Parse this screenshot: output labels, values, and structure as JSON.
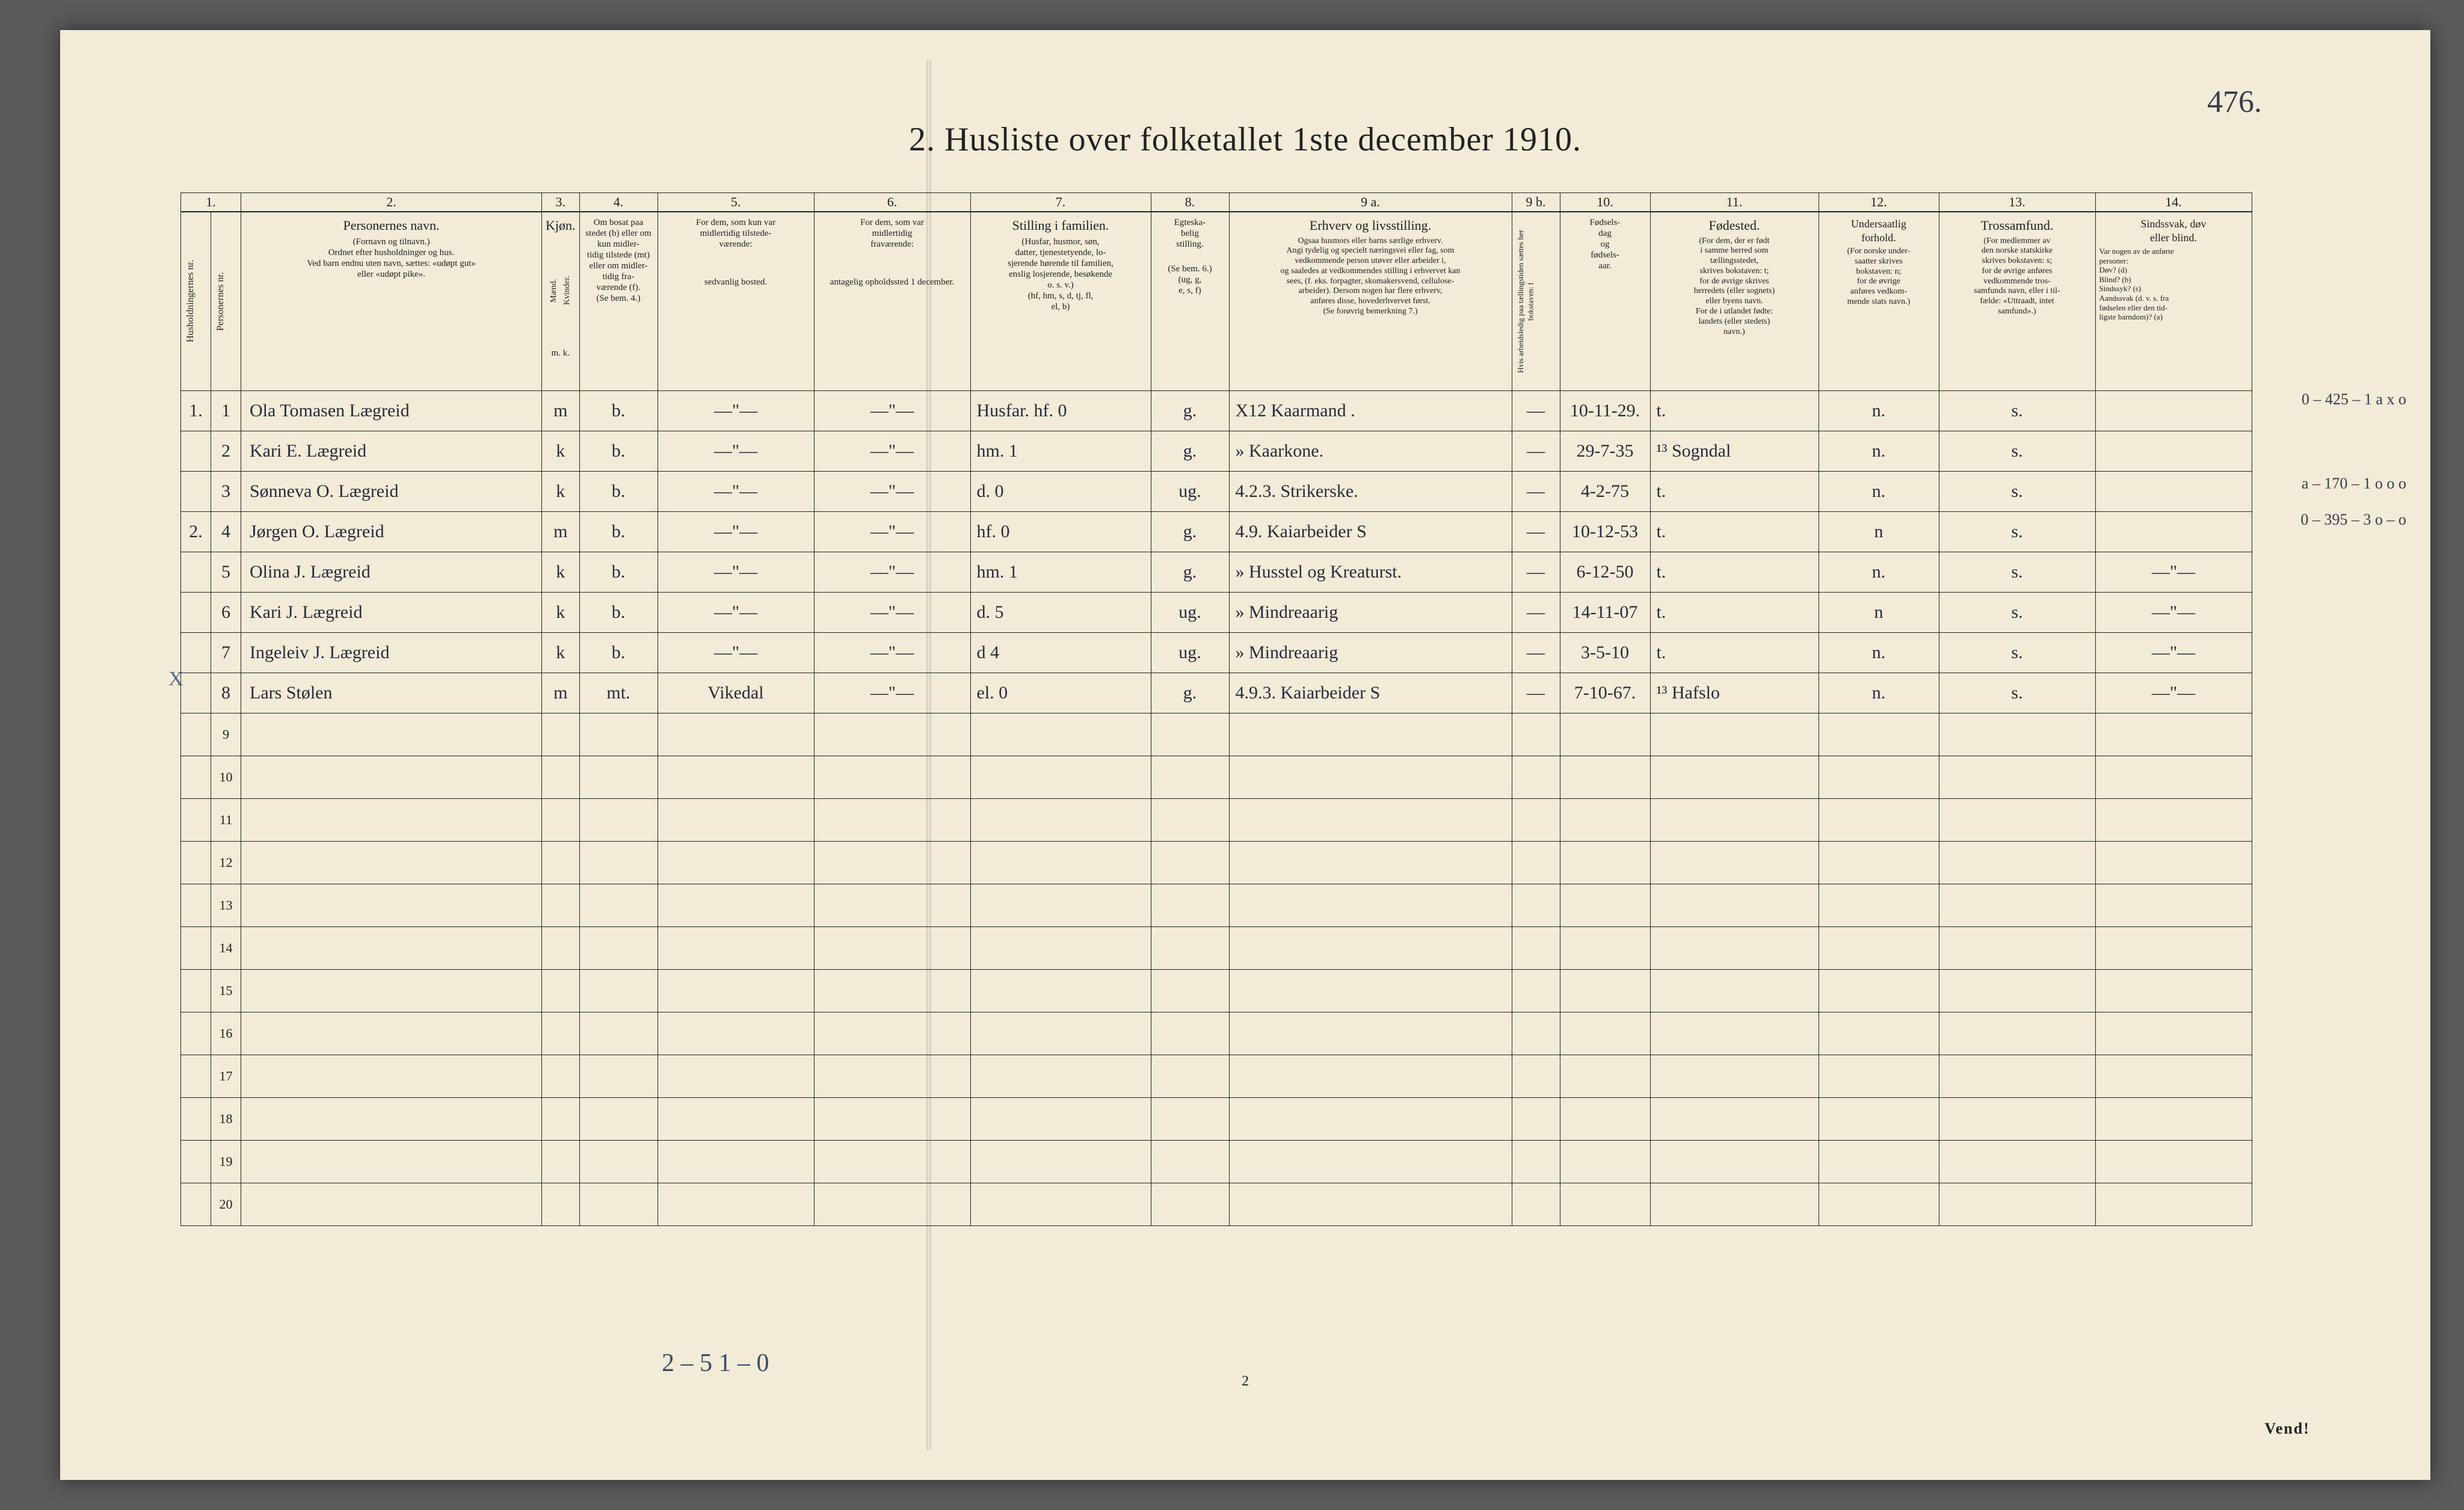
{
  "page_number_hand": "476.",
  "title": "2.  Husliste over folketallet 1ste december 1910.",
  "colnums": [
    "1.",
    "",
    "2.",
    "3.",
    "4.",
    "5.",
    "6.",
    "7.",
    "8.",
    "9 a.",
    "9 b.",
    "10.",
    "11.",
    "12.",
    "13.",
    "14."
  ],
  "headers": {
    "hush_nr": "Husholdningernes nr.",
    "pers_nr": "Personernes nr.",
    "navn_big": "Personernes navn.",
    "navn_small": "(Fornavn og tilnavn.)\nOrdnet efter husholdninger og hus.\nVed barn endnu uten navn, sættes: «udøpt gut»\neller «udøpt pike».",
    "kjon_big": "Kjøn.",
    "kjon_sub1": "Mænd.",
    "kjon_sub2": "Kvinder.",
    "kjon_mk": "m.  k.",
    "bosat_big": "Om bosat paa stedet (b) eller om\nkun midler-\ntidig tilstede (mt) eller om midler-\ntidig fra-\nværende (f).\n(Se bem. 4.)",
    "tilstede_big": "For dem, som kun var\nmidlertidig tilstede-\nværende:",
    "tilstede_small": "sedvanlig bosted.",
    "frav_big": "For dem, som var\nmidlertidig\nfraværende:",
    "frav_small": "antagelig opholdssted 1 december.",
    "stilling_big": "Stilling i familien.",
    "stilling_small": "(Husfar, husmor, søn,\ndatter, tjenestetyende, lo-\nsjerende hørende til familien,\nenslig losjerende, besøkende\no. s. v.)\n(hf, hm, s, d, tj, fl,\nel, b)",
    "egte_big": "Egteska-\nbelig\nstilling.",
    "egte_small": "(Se bem. 6.)\n(ug, g,\ne, s, f)",
    "erhverv_big": "Erhverv og livsstilling.",
    "erhverv_small": "Ogsaa husmors eller barns særlige erhverv.\nAngi tydelig og specielt næringsvei eller fag, som\nvedkommende person utøver eller arbeider i,\nog saaledes at vedkommendes stilling i erhvervet kan\nsees, (f. eks. forpagter, skomakersvend, cellulose-\narbeider). Dersom nogen har flere erhverv,\nanføres disse, hovederhvervet først.\n(Se forøvrig bemerkning 7.)",
    "arb_vert": "Hvis arbeidsledig\npaa tællingstiden sættes\nher bokstaven: l",
    "fodsels_big": "Fødsels-\ndag\nog\nfødsels-\naar.",
    "fodested_big": "Fødested.",
    "fodested_small": "(For dem, der er født\ni samme herred som\ntællingsstedet,\nskrives bokstaven: t;\nfor de øvrige skrives\nherredets (eller sognets)\neller byens navn.\nFor de i utlandet fødte:\nlandets (eller stedets)\nnavn.)",
    "undersaat_big": "Undersaatlig\nforhold.",
    "undersaat_small": "(For norske under-\nsaatter skrives\nbokstaven: n;\nfor de øvrige\nanføres vedkom-\nmende stats navn.)",
    "tros_big": "Trossamfund.",
    "tros_small": "(For medlemmer av\nden norske statskirke\nskrives bokstaven: s;\nfor de øvrige anføres\nvedkommende tros-\nsamfunds navn, eller i til-\nfælde: «Uttraadt, intet\nsamfund».)",
    "sinds_big": "Sindssvak, døv\neller blind.",
    "sinds_small": "Var nogen av de anførte\npersoner:\nDøv?       (d)\nBlind?     (b)\nSindssyk? (s)\nAandssvak (d. v. s. fra\nfødselen eller den tid-\nligste barndom)? (a)"
  },
  "rows": [
    {
      "hh": "1.",
      "nr": "1",
      "name": "Ola Tomasen Lægreid",
      "kjon": "m",
      "b": "b.",
      "c5": "—\"—",
      "c6": "—\"—",
      "fam": "Husfar. hf. 0",
      "egte": "g.",
      "erhv": "X12 Kaarmand .",
      "l": "—",
      "fod": "10-11-29.",
      "sted": "t.",
      "und": "n.",
      "tros": "s.",
      "sind": ""
    },
    {
      "hh": "",
      "nr": "2",
      "name": "Kari E. Lægreid",
      "kjon": "k",
      "b": "b.",
      "c5": "—\"—",
      "c6": "—\"—",
      "fam": "hm.     1",
      "egte": "g.",
      "erhv": "» Kaarkone.",
      "l": "—",
      "fod": "29-7-35",
      "sted": "¹³ Sogndal",
      "und": "n.",
      "tros": "s.",
      "sind": ""
    },
    {
      "hh": "",
      "nr": "3",
      "name": "Sønneva O. Lægreid",
      "kjon": "k",
      "b": "b.",
      "c5": "—\"—",
      "c6": "—\"—",
      "fam": "d.      0",
      "egte": "ug.",
      "erhv": "4.2.3. Strikerske.",
      "l": "—",
      "fod": "4-2-75",
      "sted": "t.",
      "und": "n.",
      "tros": "s.",
      "sind": ""
    },
    {
      "hh": "2.",
      "nr": "4",
      "name": "Jørgen O. Lægreid",
      "kjon": "m",
      "b": "b.",
      "c5": "—\"—",
      "c6": "—\"—",
      "fam": "hf.     0",
      "egte": "g.",
      "erhv": "4.9. Kaiarbeider S",
      "l": "—",
      "fod": "10-12-53",
      "sted": "t.",
      "und": "n",
      "tros": "s.",
      "sind": ""
    },
    {
      "hh": "",
      "nr": "5",
      "name": "Olina J. Lægreid",
      "kjon": "k",
      "b": "b.",
      "c5": "—\"—",
      "c6": "—\"—",
      "fam": "hm.     1",
      "egte": "g.",
      "erhv": "» Husstel og Kreaturst.",
      "l": "—",
      "fod": "6-12-50",
      "sted": "t.",
      "und": "n.",
      "tros": "s.",
      "sind": "—\"—"
    },
    {
      "hh": "",
      "nr": "6",
      "name": "Kari J. Lægreid",
      "kjon": "k",
      "b": "b.",
      "c5": "—\"—",
      "c6": "—\"—",
      "fam": "d.      5",
      "egte": "ug.",
      "erhv": "» Mindreaarig",
      "l": "—",
      "fod": "14-11-07",
      "sted": "t.",
      "und": "n",
      "tros": "s.",
      "sind": "—\"—"
    },
    {
      "hh": "",
      "nr": "7",
      "name": "Ingeleiv J. Lægreid",
      "kjon": "k",
      "b": "b.",
      "c5": "—\"—",
      "c6": "—\"—",
      "fam": "d       4",
      "egte": "ug.",
      "erhv": "» Mindreaarig",
      "l": "—",
      "fod": "3-5-10",
      "sted": "t.",
      "und": "n.",
      "tros": "s.",
      "sind": "—\"—"
    },
    {
      "hh": "",
      "nr": "8",
      "name": "Lars Stølen",
      "kjon": "m",
      "b": "mt.",
      "c5": "Vikedal",
      "c6": "—\"—",
      "fam": "el.     0",
      "egte": "g.",
      "erhv": "4.9.3. Kaiarbeider S",
      "l": "—",
      "fod": "7-10-67.",
      "sted": "¹³ Hafslo",
      "und": "n.",
      "tros": "s.",
      "sind": "—\"—"
    }
  ],
  "margin_notes": [
    {
      "row": 1,
      "text": "0 – 425 – 1\na x o"
    },
    {
      "row": 3,
      "text": "a – 170 – 1\no o o"
    },
    {
      "row": 4,
      "text": "0 – 395 – 3\no – o"
    }
  ],
  "empty_row_numbers": [
    "9",
    "10",
    "11",
    "12",
    "13",
    "14",
    "15",
    "16",
    "17",
    "18",
    "19",
    "20"
  ],
  "bottom_note": "2 – 5    1 – 0",
  "page2": "2",
  "vend": "Vend!",
  "colwidths": {
    "c0": 50,
    "c1": 50,
    "c2": 500,
    "c3": 60,
    "c4": 130,
    "c5": 260,
    "c6": 260,
    "c7": 300,
    "c8": 130,
    "c9": 470,
    "c9b": 80,
    "c10": 150,
    "c11": 280,
    "c12": 200,
    "c13": 260,
    "c14": 260
  },
  "colors": {
    "paper": "#f2ebd8",
    "ink": "#222222",
    "handwriting": "#2a2a3a",
    "blue": "#3a4a6a",
    "bg": "#5a5a5a"
  }
}
